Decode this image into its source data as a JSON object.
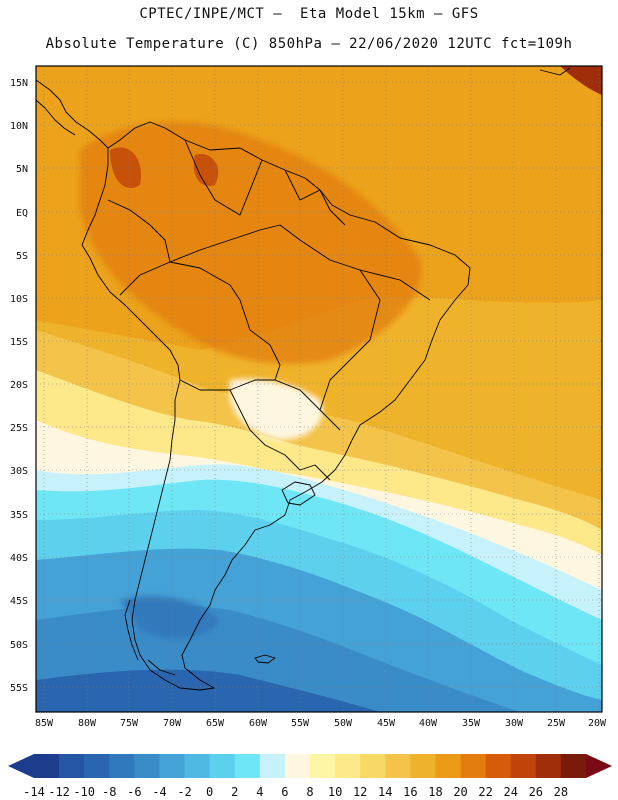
{
  "header": {
    "line1": "CPTEC/INPE/MCT –  Eta Model 15km – GFS",
    "line2": "Absolute Temperature (C) 850hPa – 22/06/2020 12UTC fct=109h"
  },
  "axes": {
    "lat_labels": [
      "15N",
      "10N",
      "5N",
      "EQ",
      "5S",
      "10S",
      "15S",
      "20S",
      "25S",
      "30S",
      "35S",
      "40S",
      "45S",
      "50S",
      "55S"
    ],
    "lon_labels": [
      "85W",
      "80W",
      "75W",
      "70W",
      "65W",
      "60W",
      "55W",
      "50W",
      "45W",
      "40W",
      "35W",
      "30W",
      "25W",
      "20W"
    ]
  },
  "colorbar": {
    "labels": [
      "-14",
      "-12",
      "-10",
      "-8",
      "-6",
      "-4",
      "-2",
      "0",
      "2",
      "4",
      "6",
      "8",
      "10",
      "12",
      "14",
      "16",
      "18",
      "20",
      "22",
      "24",
      "26",
      "28"
    ],
    "colors": [
      "#1d3d8c",
      "#2456a3",
      "#2a66b0",
      "#3079bc",
      "#3a8cc8",
      "#45a2d6",
      "#4fb8e3",
      "#5dd0ee",
      "#6ee6f6",
      "#c7f2fb",
      "#fff6e0",
      "#fff6a5",
      "#fde98a",
      "#f9d966",
      "#f3c34a",
      "#efb22b",
      "#eb9b16",
      "#e27d0e",
      "#d55c0b",
      "#c04409",
      "#a02d0a",
      "#7a1a0a"
    ],
    "min_arrow_color": "#1d3d8c",
    "max_arrow_color": "#7a0a14"
  }
}
